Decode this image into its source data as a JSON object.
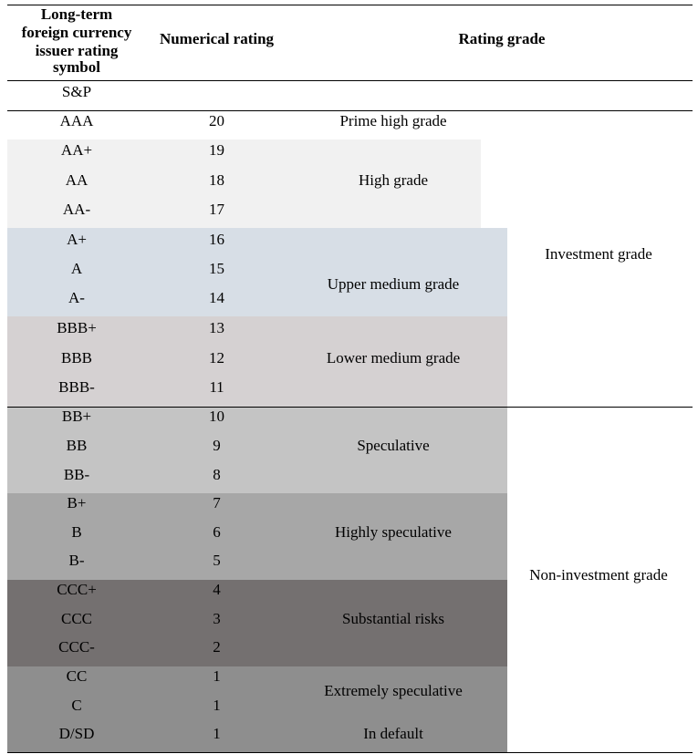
{
  "header": {
    "col1": [
      "Long-term",
      "foreign currency",
      "issuer rating",
      "symbol"
    ],
    "col2": "Numerical rating",
    "col3": "Rating grade",
    "subheader": "S&P"
  },
  "colors": {
    "high": "#f1f1f1",
    "upper_medium": "#d7dee6",
    "lower_medium": "#d5d1d2",
    "speculative": "#c4c4c4",
    "highly_speculative": "#a7a7a7",
    "substantial_risks": "#747070",
    "extremely_speculative": "#8e8e8e"
  },
  "rows": [
    {
      "symbol": "AAA",
      "rating": "20"
    },
    {
      "symbol": "AA+",
      "rating": "19"
    },
    {
      "symbol": "AA",
      "rating": "18"
    },
    {
      "symbol": "AA-",
      "rating": "17"
    },
    {
      "symbol": "A+",
      "rating": "16"
    },
    {
      "symbol": "A",
      "rating": "15"
    },
    {
      "symbol": "A-",
      "rating": "14"
    },
    {
      "symbol": "BBB+",
      "rating": "13"
    },
    {
      "symbol": "BBB",
      "rating": "12"
    },
    {
      "symbol": "BBB-",
      "rating": "11"
    },
    {
      "symbol": "BB+",
      "rating": "10"
    },
    {
      "symbol": "BB",
      "rating": "9"
    },
    {
      "symbol": "BB-",
      "rating": "8"
    },
    {
      "symbol": "B+",
      "rating": "7"
    },
    {
      "symbol": "B",
      "rating": "6"
    },
    {
      "symbol": "B-",
      "rating": "5"
    },
    {
      "symbol": "CCC+",
      "rating": "4"
    },
    {
      "symbol": "CCC",
      "rating": "3"
    },
    {
      "symbol": "CCC-",
      "rating": "2"
    },
    {
      "symbol": "CC",
      "rating": "1"
    },
    {
      "symbol": "C",
      "rating": "1"
    },
    {
      "symbol": "D/SD",
      "rating": "1"
    }
  ],
  "grades": {
    "prime": "Prime high grade",
    "high": "High grade",
    "upper_medium": "Upper medium grade",
    "lower_medium": "Lower medium grade",
    "speculative": "Speculative",
    "highly_speculative": "Highly speculative",
    "substantial_risks": "Substantial risks",
    "extremely_speculative": "Extremely speculative",
    "in_default": "In default"
  },
  "categories": {
    "investment": "Investment grade",
    "non_investment": "Non-investment grade"
  }
}
